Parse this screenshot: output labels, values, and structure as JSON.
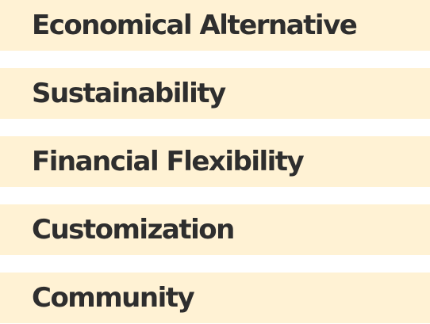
{
  "items": [
    {
      "label": "Economical Alternative"
    },
    {
      "label": "Sustainability"
    },
    {
      "label": "Financial Flexibility"
    },
    {
      "label": "Customization"
    },
    {
      "label": "Community"
    }
  ],
  "colors": {
    "band_background": "#fff2d4",
    "text": "#2e2e2e",
    "page_background": "#ffffff"
  }
}
